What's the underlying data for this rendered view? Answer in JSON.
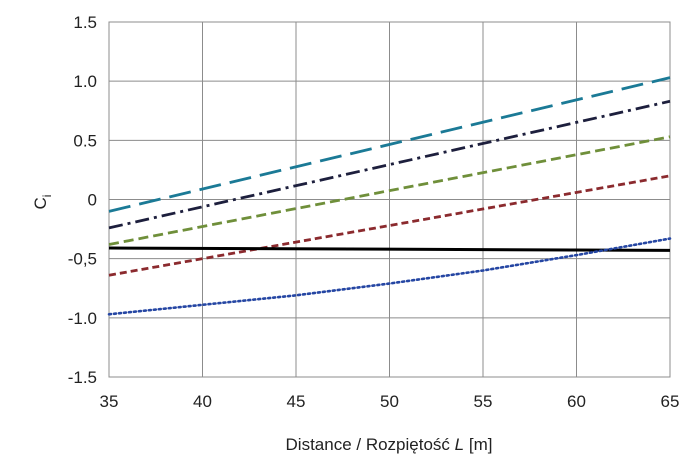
{
  "chart_data": {
    "type": "line",
    "title": "",
    "xlabel": {
      "before": "Distance / Rozpiętość ",
      "symbol": "L",
      "after": " [m]"
    },
    "ylabel": {
      "symbol": "C",
      "subscript": "i"
    },
    "xlim": [
      35,
      65
    ],
    "ylim": [
      -1.5,
      1.5
    ],
    "xticks": [
      "35",
      "40",
      "45",
      "50",
      "55",
      "60",
      "65"
    ],
    "yticks": [
      "1.5",
      "1.0",
      "0.5",
      "0",
      "-0,5",
      "-1.0",
      "-1.5"
    ],
    "grid": true,
    "legend": "none",
    "series": [
      {
        "color": "#1b7a96",
        "style": "long-dash",
        "x": [
          35,
          65
        ],
        "y": [
          -0.1,
          1.03
        ]
      },
      {
        "color": "#1d1f3d",
        "style": "dash-dot",
        "x": [
          35,
          65
        ],
        "y": [
          -0.24,
          0.83
        ]
      },
      {
        "color": "#6f8f3a",
        "style": "dash",
        "x": [
          35,
          65
        ],
        "y": [
          -0.38,
          0.53
        ]
      },
      {
        "color": "#8b2a2e",
        "style": "short-dash",
        "x": [
          35,
          65
        ],
        "y": [
          -0.64,
          0.2
        ]
      },
      {
        "color": "#000000",
        "style": "solid",
        "x": [
          35,
          65
        ],
        "y": [
          -0.41,
          -0.43
        ]
      },
      {
        "color": "#2546a3",
        "style": "dotted",
        "x": [
          35,
          40,
          45,
          50,
          55,
          60,
          65
        ],
        "y": [
          -0.97,
          -0.89,
          -0.81,
          -0.71,
          -0.6,
          -0.47,
          -0.33
        ]
      }
    ]
  }
}
